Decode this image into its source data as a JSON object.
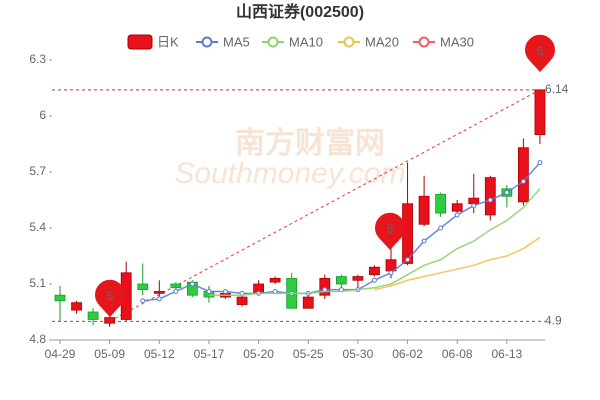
{
  "chart_data": {
    "type": "candlestick",
    "title": "山西证券(002500)",
    "watermark": [
      "南方财富网",
      "Southmoney.com"
    ],
    "categories": [
      "04-29",
      null,
      null,
      "05-09",
      null,
      null,
      "05-12",
      null,
      null,
      "05-17",
      null,
      null,
      "05-20",
      null,
      null,
      "05-25",
      null,
      null,
      "05-30",
      null,
      null,
      "06-02",
      null,
      null,
      "06-08",
      null,
      null,
      "06-13",
      null,
      null
    ],
    "candle_name": "日K",
    "up_color": "#e8101a",
    "down_color": "#2ecc40",
    "open": [
      5.04,
      4.96,
      4.95,
      4.89,
      4.91,
      5.1,
      5.05,
      5.1,
      5.11,
      5.06,
      5.03,
      4.99,
      5.05,
      5.11,
      5.13,
      4.97,
      5.04,
      5.14,
      5.12,
      5.15,
      5.17,
      5.21,
      5.42,
      5.58,
      5.49,
      5.53,
      5.47,
      5.61,
      5.54,
      5.9
    ],
    "close": [
      5.01,
      5.0,
      4.91,
      4.92,
      5.16,
      5.07,
      5.06,
      5.08,
      5.04,
      5.03,
      5.05,
      5.03,
      5.1,
      5.13,
      4.97,
      5.03,
      5.13,
      5.1,
      5.14,
      5.19,
      5.23,
      5.53,
      5.57,
      5.48,
      5.53,
      5.56,
      5.67,
      5.57,
      5.83,
      6.14
    ],
    "high": [
      5.09,
      5.01,
      4.97,
      4.93,
      5.22,
      5.21,
      5.12,
      5.11,
      5.12,
      5.09,
      5.07,
      5.04,
      5.12,
      5.14,
      5.16,
      5.04,
      5.15,
      5.15,
      5.15,
      5.2,
      5.39,
      5.75,
      5.68,
      5.59,
      5.55,
      5.69,
      5.68,
      5.63,
      5.88,
      6.14
    ],
    "low": [
      4.9,
      4.94,
      4.88,
      4.87,
      4.9,
      5.04,
      5.03,
      5.07,
      5.03,
      5.0,
      5.02,
      4.98,
      5.04,
      5.1,
      4.97,
      4.97,
      5.02,
      5.07,
      5.08,
      5.14,
      5.13,
      5.2,
      5.41,
      5.46,
      5.47,
      5.48,
      5.44,
      5.51,
      5.52,
      5.85
    ],
    "series": [
      {
        "name": "MA5",
        "color": "#5b7bd5",
        "values": [
          null,
          null,
          null,
          null,
          null,
          5.01,
          5.02,
          5.06,
          5.1,
          5.06,
          5.06,
          5.05,
          5.05,
          5.06,
          5.05,
          5.05,
          5.07,
          5.07,
          5.07,
          5.12,
          5.16,
          5.23,
          5.33,
          5.4,
          5.47,
          5.52,
          5.55,
          5.59,
          5.65,
          5.75
        ]
      },
      {
        "name": "MA10",
        "color": "#8fd16a",
        "values": [
          null,
          null,
          null,
          null,
          null,
          null,
          null,
          null,
          null,
          5.04,
          5.04,
          5.04,
          5.05,
          5.05,
          5.05,
          5.05,
          5.06,
          5.06,
          5.07,
          5.08,
          5.1,
          5.15,
          5.2,
          5.23,
          5.29,
          5.33,
          5.39,
          5.44,
          5.51,
          5.61
        ]
      },
      {
        "name": "MA20",
        "color": "#f5c04a",
        "values": [
          null,
          null,
          null,
          null,
          null,
          null,
          null,
          null,
          null,
          null,
          null,
          null,
          null,
          null,
          null,
          null,
          null,
          null,
          null,
          5.07,
          5.09,
          5.12,
          5.14,
          5.16,
          5.18,
          5.2,
          5.23,
          5.25,
          5.29,
          5.35
        ]
      },
      {
        "name": "MA30",
        "color": "#f06060",
        "values": [
          null,
          null,
          null,
          null,
          null,
          null,
          null,
          null,
          null,
          null,
          null,
          null,
          null,
          null,
          null,
          null,
          null,
          null,
          null,
          null,
          null,
          null,
          null,
          null,
          null,
          null,
          null,
          null,
          null,
          null
        ]
      }
    ],
    "hlines": [
      6.14,
      4.9
    ],
    "pins": [
      "6",
      "5",
      "5"
    ],
    "ylim": [
      4.8,
      6.3
    ],
    "yticks": [
      4.8,
      5.1,
      5.4,
      5.7,
      6,
      6.3
    ],
    "grid": false
  }
}
